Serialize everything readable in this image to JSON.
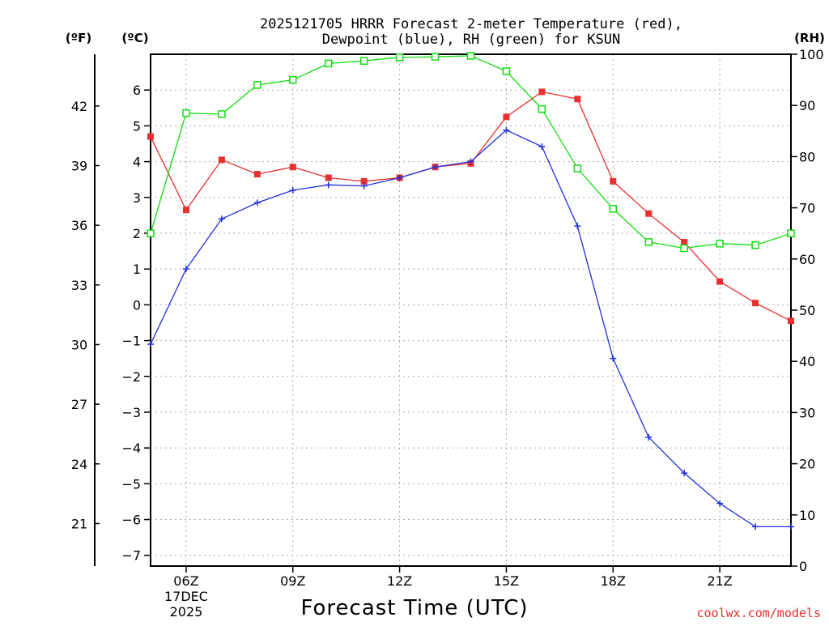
{
  "chart_data": {
    "type": "line",
    "title_line1": "2025121705 HRRR Forecast 2-meter Temperature (red),",
    "title_line2": "Dewpoint (blue), RH (green) for KSUN",
    "xlabel": "Forecast Time (UTC)",
    "unit_left_f": "(ºF)",
    "unit_left_c": "(ºC)",
    "unit_right": "(RH)",
    "watermark": "coolwx.com/models",
    "x_hours": [
      5,
      6,
      7,
      8,
      9,
      10,
      11,
      12,
      13,
      14,
      15,
      16,
      17,
      18,
      19,
      20,
      21,
      22,
      23
    ],
    "xlim": [
      5,
      23
    ],
    "ylim_c": [
      -7.3,
      7
    ],
    "ylim_rh": [
      0,
      100
    ],
    "y_ticks_c": [
      -7,
      -6,
      -5,
      -4,
      -3,
      -2,
      -1,
      0,
      1,
      2,
      3,
      4,
      5,
      6
    ],
    "y_tick_labels_c": [
      "−7",
      "−6",
      "−5",
      "−4",
      "−3",
      "−2",
      "−1",
      "0",
      "1",
      "2",
      "3",
      "4",
      "5",
      "6"
    ],
    "y_ticks_f": [
      21,
      24,
      27,
      30,
      33,
      36,
      39,
      42
    ],
    "y_ticks_rh": [
      0,
      10,
      20,
      30,
      40,
      50,
      60,
      70,
      80,
      90,
      100
    ],
    "x_ticks": [
      {
        "hour": 6,
        "label": "06Z",
        "sub1": "17DEC",
        "sub2": "2025"
      },
      {
        "hour": 9,
        "label": "09Z"
      },
      {
        "hour": 12,
        "label": "12Z"
      },
      {
        "hour": 15,
        "label": "15Z"
      },
      {
        "hour": 18,
        "label": "18Z"
      },
      {
        "hour": 21,
        "label": "21Z"
      }
    ],
    "series": [
      {
        "name": "Temperature",
        "axis": "c",
        "color": "#e83030",
        "marker": "filled-square",
        "values": [
          4.7,
          2.65,
          4.05,
          3.65,
          3.85,
          3.55,
          3.45,
          3.55,
          3.85,
          3.95,
          5.25,
          5.95,
          5.75,
          3.45,
          2.55,
          1.75,
          0.65,
          0.05,
          -0.45
        ]
      },
      {
        "name": "Dewpoint",
        "axis": "c",
        "color": "#2030e0",
        "marker": "plus",
        "values": [
          -1.1,
          1.0,
          2.4,
          2.85,
          3.2,
          3.35,
          3.32,
          3.55,
          3.85,
          4.0,
          4.88,
          4.42,
          2.2,
          -1.5,
          -3.7,
          -4.7,
          -5.55,
          -6.2,
          -6.2
        ]
      },
      {
        "name": "RH",
        "axis": "rh",
        "color": "#10dd10",
        "marker": "open-square",
        "values": [
          65,
          88.5,
          88.3,
          94,
          95,
          98.2,
          98.7,
          99.4,
          99.5,
          99.7,
          96.7,
          89.3,
          77.7,
          69.8,
          63.3,
          62.1,
          63,
          62.7,
          65
        ]
      }
    ]
  }
}
